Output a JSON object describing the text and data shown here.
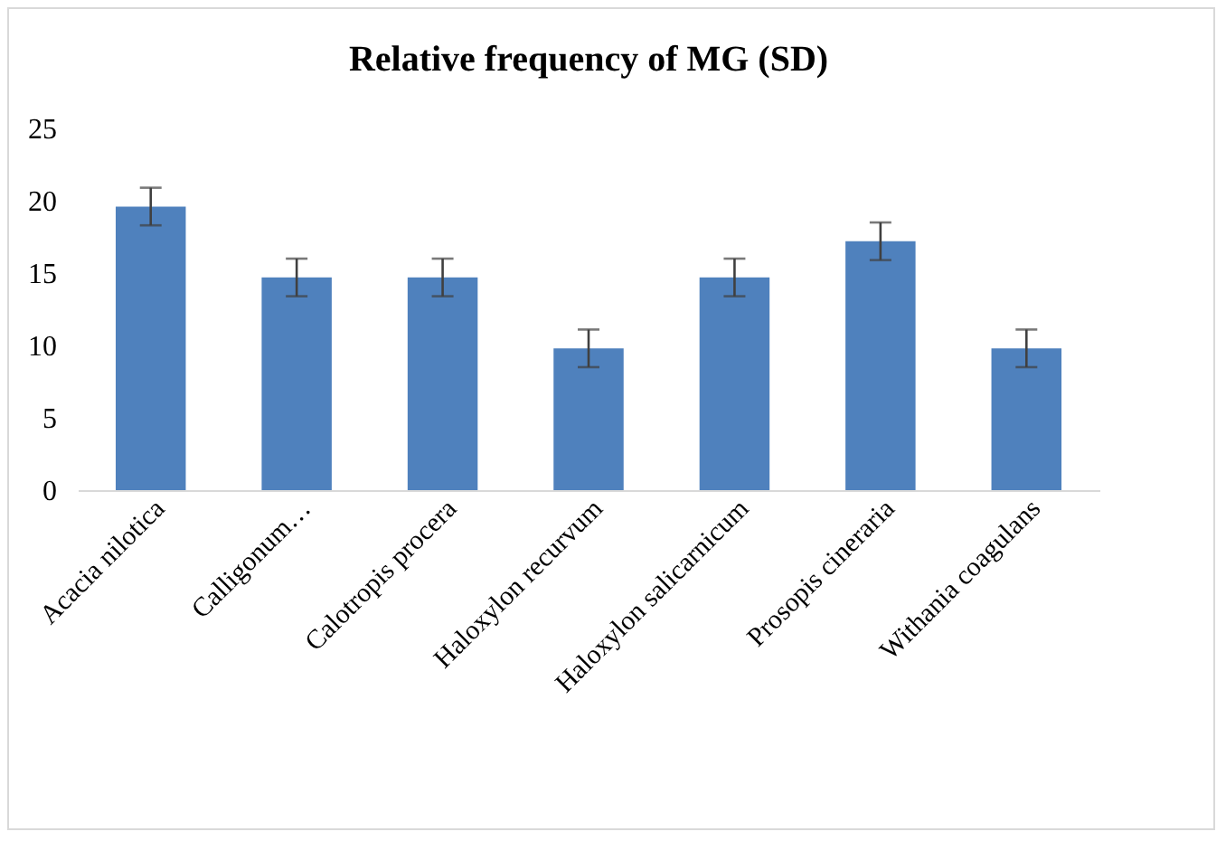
{
  "chart_data": {
    "type": "bar",
    "title": "Relative frequency of MG (SD)",
    "categories": [
      "Acacia nilotica",
      "Calligonum…",
      "Calotropis procera",
      "Haloxylon recurvum",
      "Haloxylon salicarnicum",
      "Prosopis cineraria",
      "Withania coagulans"
    ],
    "values": [
      19.6,
      14.7,
      14.7,
      9.8,
      14.7,
      17.2,
      9.8
    ],
    "errors": [
      1.3,
      1.3,
      1.3,
      1.3,
      1.3,
      1.3,
      1.3
    ],
    "color": "#4f81bd",
    "ylim": [
      0,
      25
    ],
    "yticks": [
      0,
      5,
      10,
      15,
      20,
      25
    ],
    "grid": false
  }
}
